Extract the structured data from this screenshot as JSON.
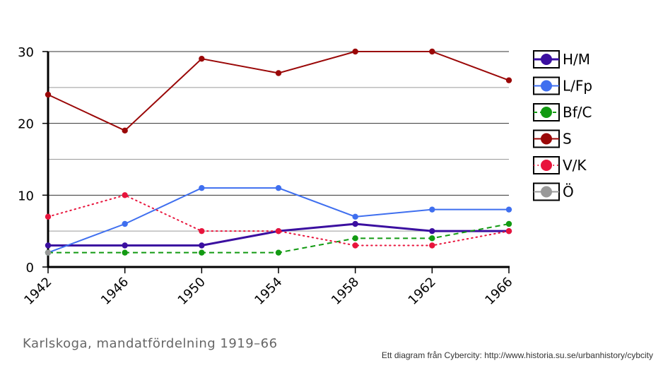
{
  "chart_data": {
    "type": "line",
    "x": [
      "1942",
      "1946",
      "1950",
      "1954",
      "1958",
      "1962",
      "1966"
    ],
    "ylim": [
      0,
      30
    ],
    "y_ticks": [
      "0",
      "10",
      "20",
      "30"
    ],
    "grid": true,
    "legend_position": "right",
    "series": [
      {
        "name": "H/M",
        "color": "#3b0fa0",
        "style": "solid",
        "width": 3,
        "values": [
          3,
          3,
          3,
          5,
          6,
          5,
          5
        ]
      },
      {
        "name": "L/Fp",
        "color": "#3f6fef",
        "style": "solid",
        "width": 2,
        "values": [
          2,
          6,
          11,
          11,
          7,
          8,
          8
        ]
      },
      {
        "name": "Bf/C",
        "color": "#129a12",
        "style": "dashed",
        "width": 2,
        "values": [
          2,
          2,
          2,
          2,
          4,
          4,
          6
        ]
      },
      {
        "name": "S",
        "color": "#9a0707",
        "style": "solid",
        "width": 2,
        "values": [
          24,
          19,
          29,
          27,
          30,
          30,
          26
        ]
      },
      {
        "name": "V/K",
        "color": "#e8143c",
        "style": "dotted",
        "width": 2,
        "values": [
          7,
          10,
          5,
          5,
          3,
          3,
          5
        ]
      },
      {
        "name": "Ö",
        "color": "#999999",
        "style": "solid",
        "width": 2,
        "values": [
          2,
          null,
          null,
          null,
          null,
          null,
          null
        ]
      }
    ]
  },
  "caption": "Karlskoga, mandatfördelning 1919–66",
  "credit": "Ett diagram från Cybercity: http://www.historia.su.se/urbanhistory/cybcity"
}
